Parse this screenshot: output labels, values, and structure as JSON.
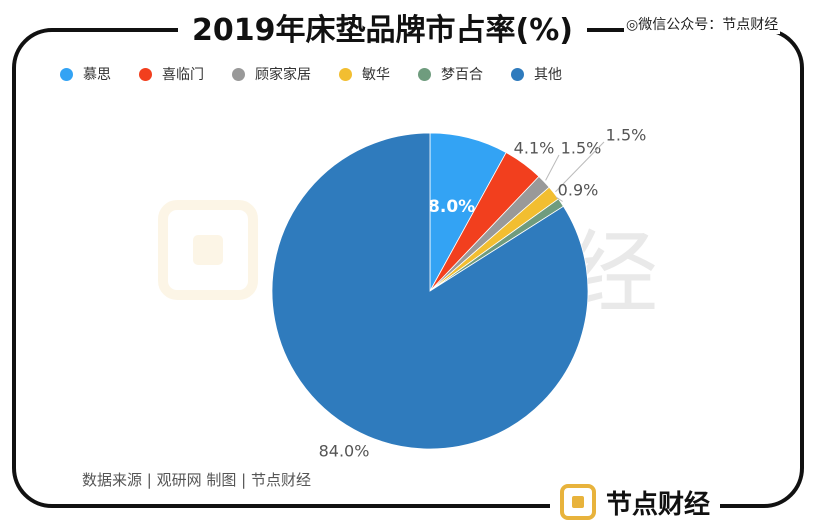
{
  "header": {
    "title": "2019年床垫品牌市占率(%)",
    "watermark": "◎微信公众号：节点财经"
  },
  "footer": {
    "source": "数据来源 | 观研网     制图 | 节点财经",
    "brand": "节点财经"
  },
  "colors": {
    "accent_brand": "#E8B33C",
    "frame": "#111111"
  },
  "chart_data": {
    "type": "pie",
    "title": "2019年床垫品牌市占率(%)",
    "legend_position": "top",
    "slices": [
      {
        "name": "慕思",
        "value": 8.0,
        "label": "8.0%",
        "color": "#33A3F4"
      },
      {
        "name": "喜临门",
        "value": 4.1,
        "label": "4.1%",
        "color": "#F23F1E"
      },
      {
        "name": "顾家家居",
        "value": 1.5,
        "label": "1.5%",
        "color": "#999999"
      },
      {
        "name": "敏华",
        "value": 1.5,
        "label": "1.5%",
        "color": "#F2BE31"
      },
      {
        "name": "梦百合",
        "value": 0.9,
        "label": "0.9%",
        "color": "#6F9C7E"
      },
      {
        "name": "其他",
        "value": 84.0,
        "label": "84.0%",
        "color": "#2F7BBD"
      }
    ]
  }
}
